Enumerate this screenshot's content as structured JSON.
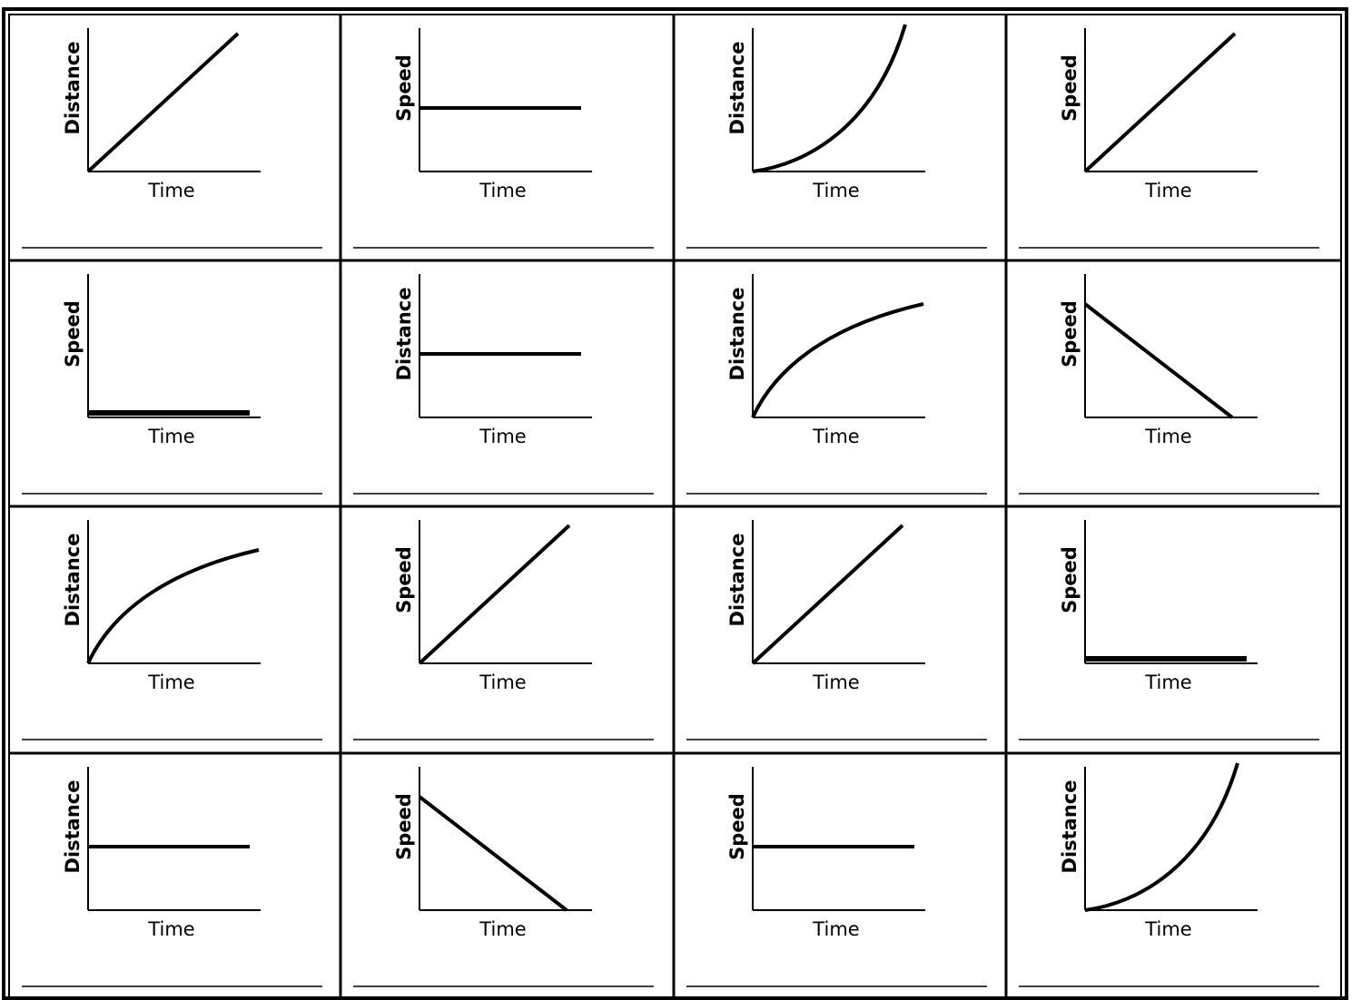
{
  "cells": [
    {
      "y_label": "Distance",
      "x_label": "Time"
    },
    {
      "y_label": "Speed",
      "x_label": "Time"
    },
    {
      "y_label": "Distance",
      "x_label": "Time"
    },
    {
      "y_label": "Speed",
      "x_label": "Time"
    },
    {
      "y_label": "Speed",
      "x_label": "Time"
    },
    {
      "y_label": "Distance",
      "x_label": "Time"
    },
    {
      "y_label": "Distance",
      "x_label": "Time"
    },
    {
      "y_label": "Speed",
      "x_label": "Time"
    },
    {
      "y_label": "Distance",
      "x_label": "Time"
    },
    {
      "y_label": "Speed",
      "x_label": "Time"
    },
    {
      "y_label": "Distance",
      "x_label": "Time"
    },
    {
      "y_label": "Speed",
      "x_label": "Time"
    },
    {
      "y_label": "Distance",
      "x_label": "Time"
    },
    {
      "y_label": "Speed",
      "x_label": "Time"
    },
    {
      "y_label": "Speed",
      "x_label": "Time"
    },
    {
      "y_label": "Distance",
      "x_label": "Time"
    }
  ]
}
